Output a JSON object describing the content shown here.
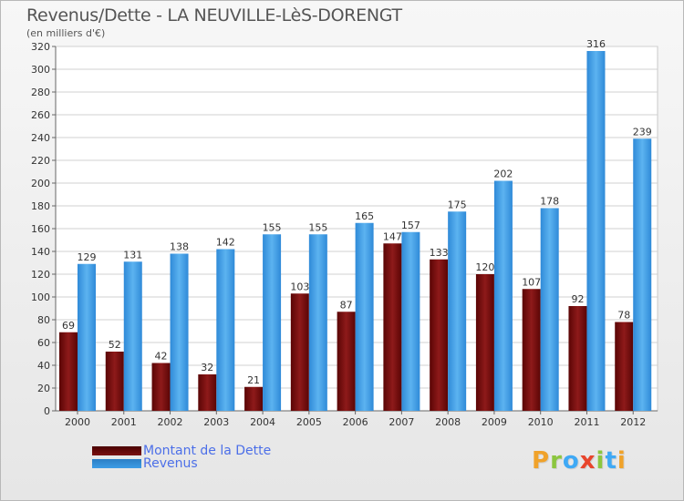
{
  "title": "Revenus/Dette - LA NEUVILLE-LèS-DORENGT",
  "subtitle": "(en milliers d'€)",
  "brand": {
    "text": "Proxiti",
    "letter_colors": [
      "#f0a22a",
      "#8cc63f",
      "#3fa9f5",
      "#e8452c",
      "#8cc63f",
      "#3fa9f5",
      "#f0a22a"
    ]
  },
  "chart_data": {
    "type": "bar",
    "categories": [
      "2000",
      "2001",
      "2002",
      "2003",
      "2004",
      "2005",
      "2006",
      "2007",
      "2008",
      "2009",
      "2010",
      "2011",
      "2012"
    ],
    "series": [
      {
        "name": "Montant de la Dette",
        "values": [
          69,
          52,
          42,
          32,
          21,
          103,
          87,
          147,
          133,
          120,
          107,
          92,
          78
        ],
        "color": "#7a1010"
      },
      {
        "name": "Revenus",
        "values": [
          129,
          131,
          138,
          142,
          155,
          155,
          165,
          157,
          175,
          202,
          178,
          316,
          239
        ],
        "color": "#3d9de6"
      }
    ],
    "title": "Revenus/Dette - LA NEUVILLE-LèS-DORENGT",
    "subtitle": "(en milliers d'€)",
    "xlabel": "",
    "ylabel": "",
    "ylim": [
      0,
      320
    ],
    "ytick_step": 20,
    "grid": true,
    "legend": "bottom-left"
  }
}
